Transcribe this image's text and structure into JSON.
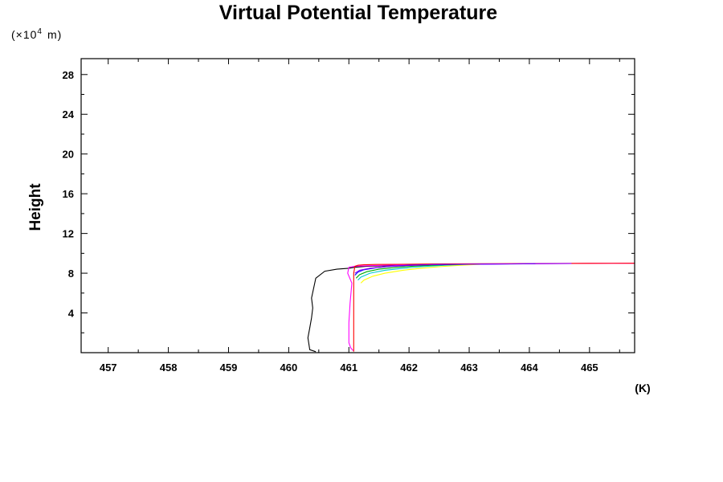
{
  "chart_data": {
    "type": "line",
    "title": "Virtual Potential Temperature",
    "ylabel": "Height",
    "y_scale_label": "(×10",
    "y_scale_exp": "4",
    "y_scale_unit": "m)",
    "xlabel": "(K)",
    "xlim": [
      456.55,
      465.75
    ],
    "ylim": [
      0.0,
      29.6
    ],
    "x_ticks": [
      457,
      458,
      459,
      460,
      461,
      462,
      463,
      464,
      465
    ],
    "x_tick_labels": [
      "457",
      "458",
      "459",
      "460",
      "461",
      "462",
      "463",
      "464",
      "465"
    ],
    "y_ticks": [
      4,
      8,
      12,
      16,
      20,
      24,
      28
    ],
    "y_tick_labels": [
      "4",
      "8",
      "12",
      "16",
      "20",
      "24",
      "28"
    ],
    "grid": false,
    "series": [
      {
        "color": "#000000",
        "x": [
          460.45,
          460.35,
          460.32,
          460.35,
          460.38,
          460.4,
          460.38,
          460.45,
          460.6,
          460.8,
          461.0,
          461.1,
          461.3,
          461.6,
          462.0,
          462.5,
          463.0
        ],
        "y": [
          0.1,
          0.3,
          1.5,
          2.5,
          3.5,
          4.5,
          5.5,
          7.5,
          8.2,
          8.4,
          8.5,
          8.6,
          8.7,
          8.75,
          8.8,
          8.85,
          8.9
        ]
      },
      {
        "color": "#ff00ff",
        "x": [
          461.07,
          461.03,
          461.0,
          461.0,
          461.02,
          461.05,
          460.98,
          461.0,
          461.1,
          461.3,
          461.6,
          462.0,
          462.5,
          463.0,
          463.5,
          464.0,
          464.5,
          465.0,
          465.75
        ],
        "y": [
          0.2,
          0.5,
          1.0,
          3.0,
          5.0,
          7.0,
          8.0,
          8.6,
          8.7,
          8.75,
          8.8,
          8.85,
          8.88,
          8.9,
          8.93,
          8.95,
          8.97,
          8.99,
          9.0
        ]
      },
      {
        "color": "#ff0000",
        "x": [
          461.08,
          461.08,
          461.08,
          461.1,
          461.15,
          461.25,
          461.45,
          461.8,
          462.4,
          463.2,
          464.0,
          465.0,
          465.75
        ],
        "y": [
          0.1,
          5.0,
          8.0,
          8.7,
          8.8,
          8.85,
          8.88,
          8.9,
          8.93,
          8.95,
          8.97,
          8.99,
          9.0
        ]
      },
      {
        "color": "#ffff00",
        "x": [
          461.2,
          461.25,
          461.4,
          461.6,
          461.9,
          462.2,
          462.5,
          462.8,
          463.2
        ],
        "y": [
          7.0,
          7.3,
          7.7,
          8.0,
          8.3,
          8.5,
          8.65,
          8.78,
          8.9
        ]
      },
      {
        "color": "#00cccc",
        "x": [
          461.15,
          461.2,
          461.35,
          461.6,
          461.9,
          462.2,
          462.6,
          463.0
        ],
        "y": [
          7.3,
          7.6,
          8.0,
          8.3,
          8.5,
          8.65,
          8.8,
          8.9
        ]
      },
      {
        "color": "#00aa00",
        "x": [
          461.12,
          461.18,
          461.3,
          461.5,
          461.8,
          462.1,
          462.5,
          462.9
        ],
        "y": [
          7.5,
          7.85,
          8.15,
          8.4,
          8.6,
          8.72,
          8.83,
          8.9
        ]
      },
      {
        "color": "#0000ff",
        "x": [
          461.1,
          461.15,
          461.25,
          461.45,
          461.7,
          462.0,
          462.4,
          462.8,
          463.7,
          464.1
        ],
        "y": [
          7.8,
          8.1,
          8.35,
          8.55,
          8.7,
          8.8,
          8.87,
          8.9,
          8.93,
          8.95
        ]
      },
      {
        "color": "#8800ff",
        "x": [
          461.1,
          461.18,
          461.35,
          461.6,
          461.9,
          462.3,
          462.8,
          463.5,
          464.2,
          464.7
        ],
        "y": [
          8.0,
          8.3,
          8.5,
          8.65,
          8.75,
          8.85,
          8.9,
          8.93,
          8.96,
          8.98
        ]
      }
    ]
  }
}
